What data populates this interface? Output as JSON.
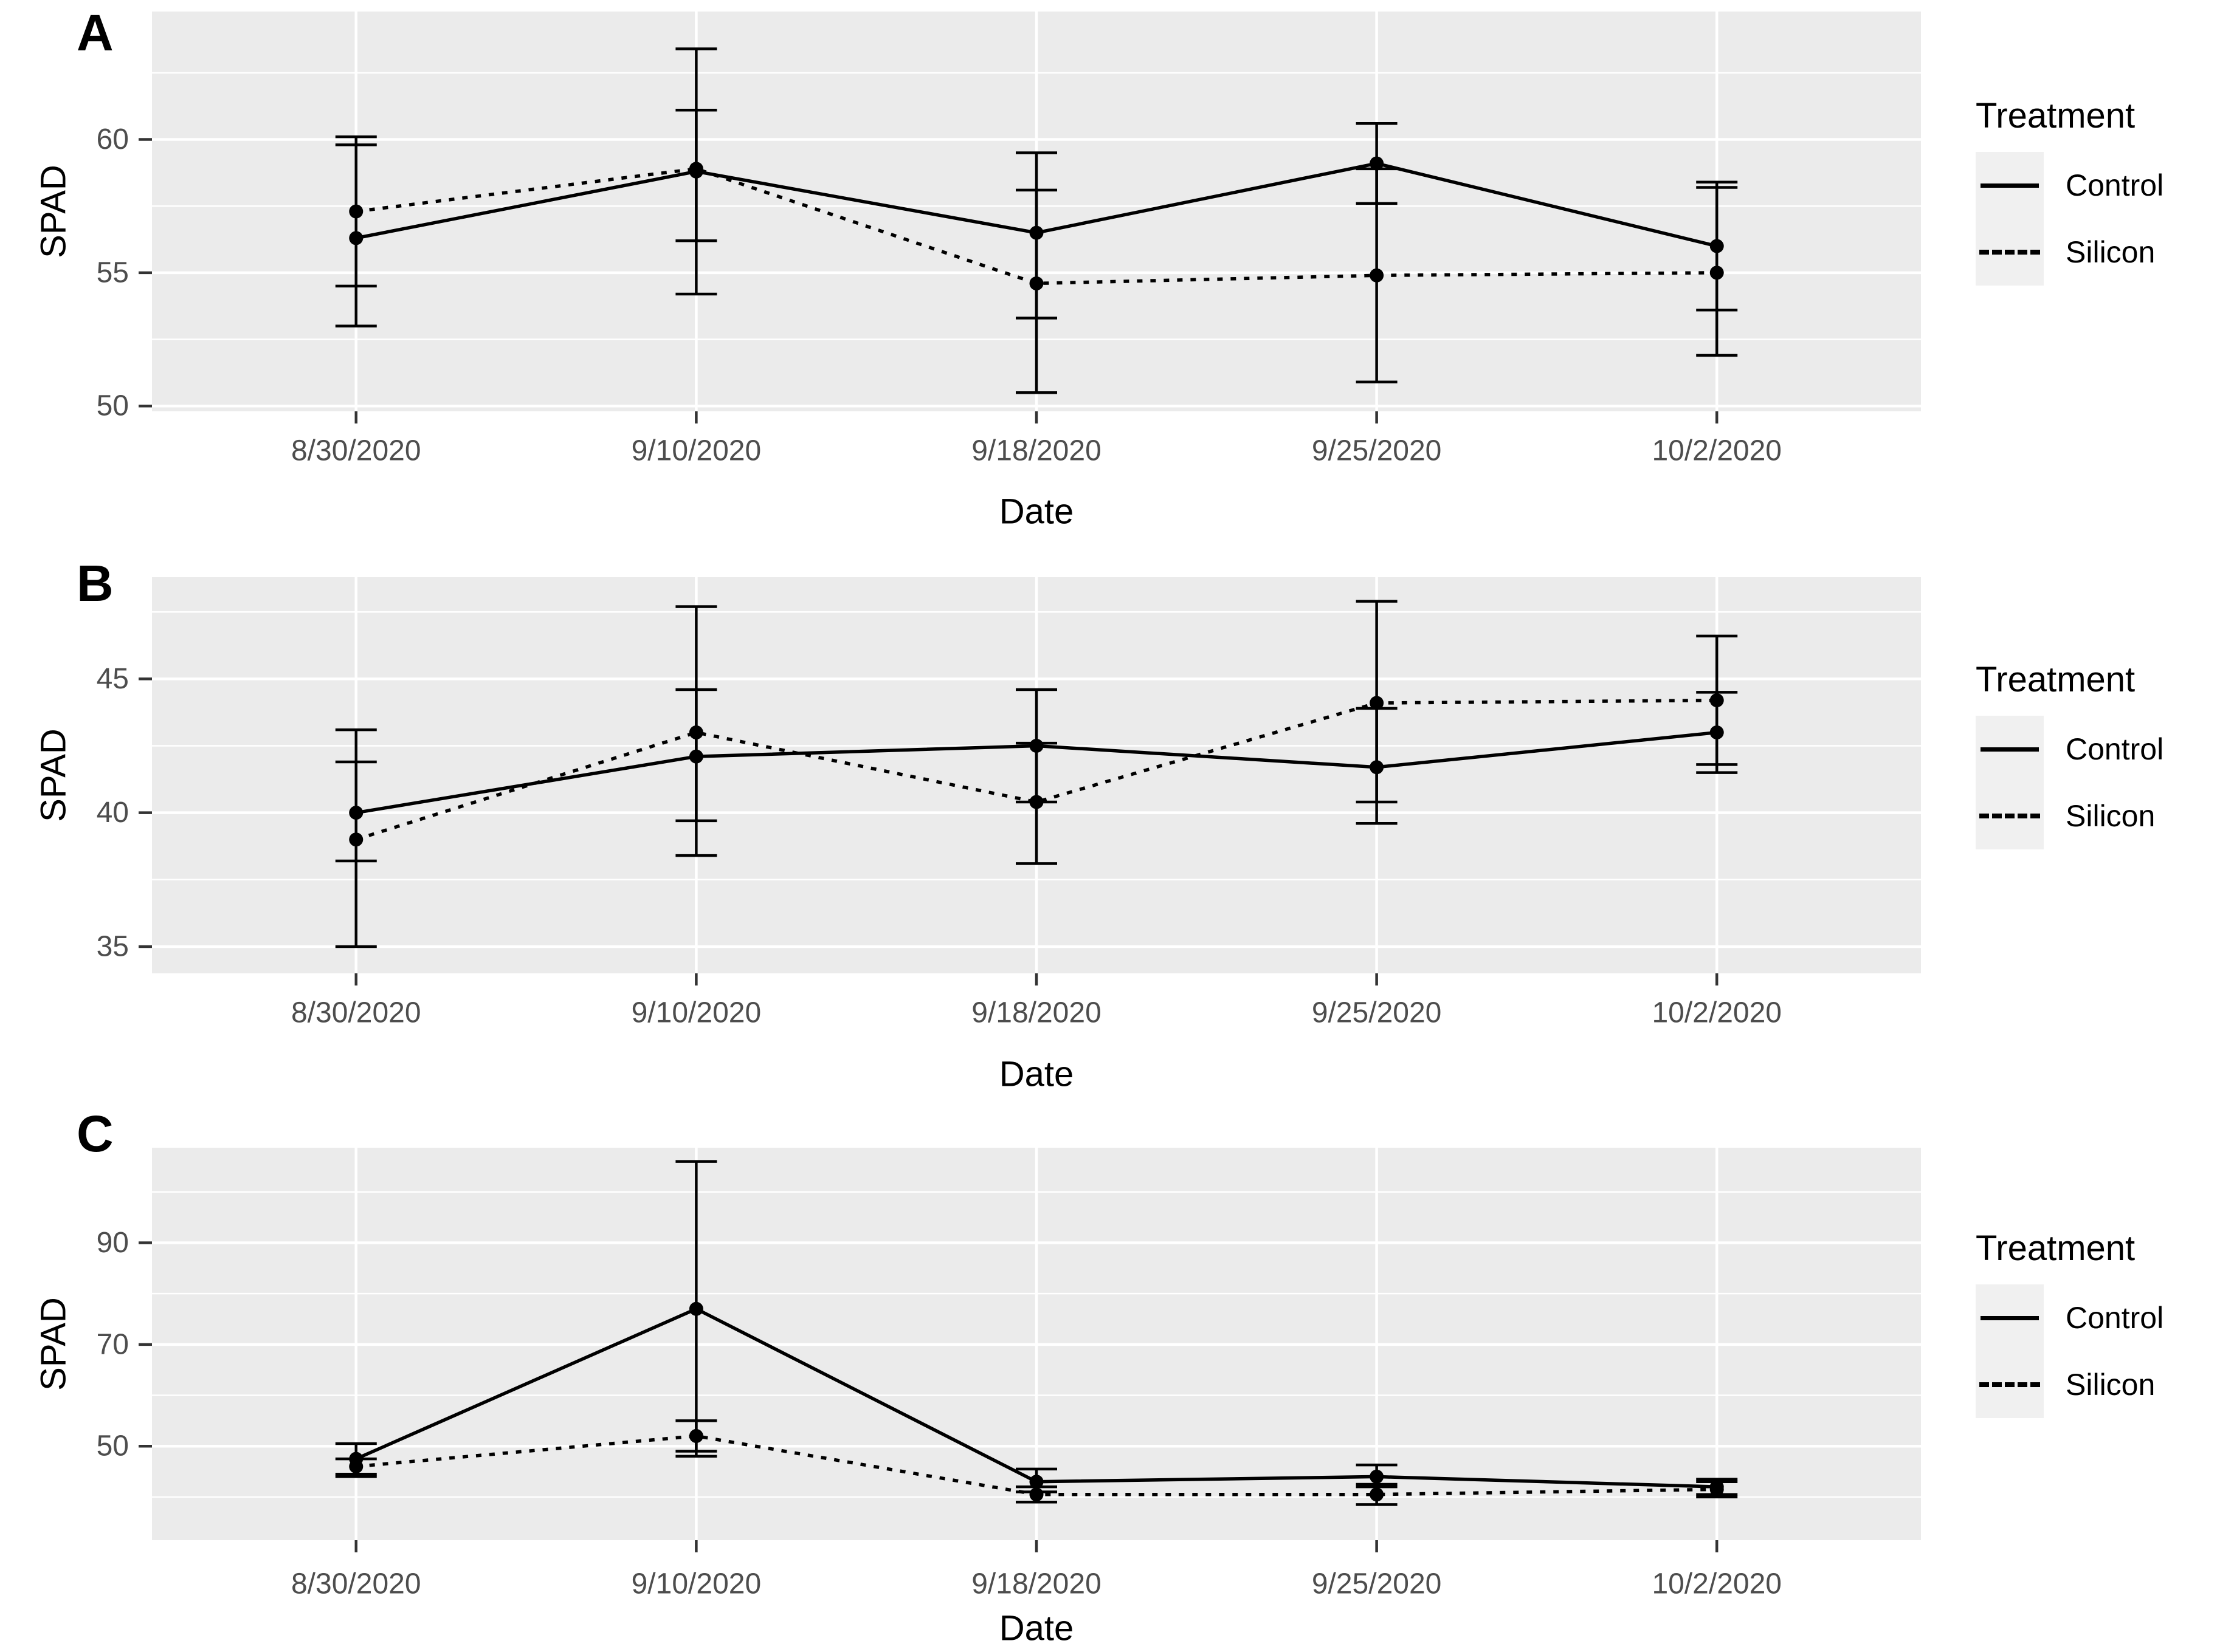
{
  "ui": {
    "background": "#FFFFFF",
    "panel_background": "#EBEBEB",
    "gridline_color": "#FFFFFF",
    "tick_mark_color": "#333333",
    "tick_label_color": "#4D4D4D",
    "axis_title_color": "#000000",
    "data_color": "#000000",
    "legend_key_background": "#F0F0F0"
  },
  "chart_data": [
    {
      "type": "line",
      "panel_label": "A",
      "xlabel": "Date",
      "ylabel": "SPAD",
      "categories": [
        "8/30/2020",
        "9/10/2020",
        "9/18/2020",
        "9/25/2020",
        "10/2/2020"
      ],
      "yticks": [
        50,
        55,
        60
      ],
      "yminor": [
        52.5,
        57.5,
        62.5
      ],
      "ylim": [
        49.8,
        64.8
      ],
      "grid": true,
      "legend": {
        "title": "Treatment",
        "position": "right"
      },
      "series": [
        {
          "name": "Control",
          "linestyle": "solid",
          "values": [
            56.3,
            58.8,
            56.5,
            59.1,
            56.0
          ],
          "lower": [
            53.0,
            54.2,
            53.3,
            57.6,
            53.6
          ],
          "upper": [
            59.8,
            63.4,
            59.5,
            60.6,
            58.4
          ]
        },
        {
          "name": "Silicon",
          "linestyle": "dashed",
          "values": [
            57.3,
            58.9,
            54.6,
            54.9,
            55.0
          ],
          "lower": [
            54.5,
            56.2,
            50.5,
            50.9,
            51.9
          ],
          "upper": [
            60.1,
            61.1,
            58.1,
            58.9,
            58.2
          ]
        }
      ]
    },
    {
      "type": "line",
      "panel_label": "B",
      "xlabel": "Date",
      "ylabel": "SPAD",
      "categories": [
        "8/30/2020",
        "9/10/2020",
        "9/18/2020",
        "9/25/2020",
        "10/2/2020"
      ],
      "yticks": [
        35,
        40,
        45
      ],
      "yminor": [
        37.5,
        42.5,
        47.5
      ],
      "ylim": [
        34.0,
        48.8
      ],
      "grid": true,
      "legend": {
        "title": "Treatment",
        "position": "right"
      },
      "series": [
        {
          "name": "Control",
          "linestyle": "solid",
          "values": [
            40.0,
            42.1,
            42.5,
            41.7,
            43.0
          ],
          "lower": [
            38.2,
            39.7,
            40.4,
            39.6,
            41.5
          ],
          "upper": [
            41.9,
            44.6,
            44.6,
            43.9,
            44.5
          ]
        },
        {
          "name": "Silicon",
          "linestyle": "dashed",
          "values": [
            39.0,
            43.0,
            40.4,
            44.1,
            44.2
          ],
          "lower": [
            35.0,
            38.4,
            38.1,
            40.4,
            41.8
          ],
          "upper": [
            43.1,
            47.7,
            42.6,
            47.9,
            46.6
          ]
        }
      ]
    },
    {
      "type": "line",
      "panel_label": "C",
      "xlabel": "Date",
      "ylabel": "SPAD",
      "categories": [
        "8/30/2020",
        "9/10/2020",
        "9/18/2020",
        "9/25/2020",
        "10/2/2020"
      ],
      "yticks": [
        50,
        70,
        90
      ],
      "yminor": [
        40,
        60,
        80,
        100
      ],
      "ylim": [
        31.5,
        108.7
      ],
      "grid": true,
      "legend": {
        "title": "Treatment",
        "position": "right"
      },
      "series": [
        {
          "name": "Control",
          "linestyle": "solid",
          "values": [
            47.5,
            77.0,
            43.0,
            44.0,
            42.0
          ],
          "lower": [
            44.0,
            48.0,
            41.0,
            42.0,
            40.5
          ],
          "upper": [
            50.5,
            106.0,
            45.5,
            46.3,
            43.5
          ]
        },
        {
          "name": "Silicon",
          "linestyle": "dashed",
          "values": [
            46.0,
            52.0,
            40.5,
            40.5,
            41.5
          ],
          "lower": [
            44.5,
            49.0,
            39.0,
            38.5,
            40.0
          ],
          "upper": [
            47.5,
            55.0,
            42.0,
            42.5,
            43.0
          ]
        }
      ]
    }
  ]
}
